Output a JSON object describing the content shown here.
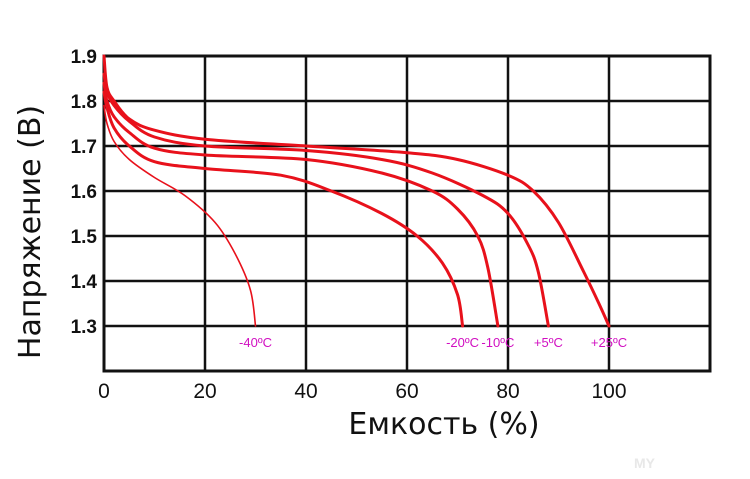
{
  "chart_data": {
    "type": "line",
    "xlabel": "Емкость (%)",
    "ylabel": "Напряжение (В)",
    "xlim": [
      0,
      120
    ],
    "ylim": [
      1.2,
      1.9
    ],
    "x_ticks": [
      0,
      20,
      40,
      60,
      80,
      100
    ],
    "x_tick_labels": [
      "0",
      "20",
      "40",
      "60",
      "80",
      "100"
    ],
    "y_ticks": [
      1.3,
      1.4,
      1.5,
      1.6,
      1.7,
      1.8,
      1.9
    ],
    "y_tick_labels": [
      "1.3",
      "1.4",
      "1.5",
      "1.6",
      "1.7",
      "1.8",
      "1.9"
    ],
    "grid": true,
    "series": [
      {
        "name": "+25ºC",
        "points": [
          [
            0,
            1.9
          ],
          [
            0.6,
            1.83
          ],
          [
            2,
            1.8
          ],
          [
            5,
            1.76
          ],
          [
            10,
            1.735
          ],
          [
            20,
            1.715
          ],
          [
            40,
            1.7
          ],
          [
            60,
            1.685
          ],
          [
            70,
            1.67
          ],
          [
            80,
            1.635
          ],
          [
            85,
            1.6
          ],
          [
            90,
            1.53
          ],
          [
            95,
            1.42
          ],
          [
            98,
            1.35
          ],
          [
            100,
            1.3
          ]
        ]
      },
      {
        "name": "+5ºC",
        "points": [
          [
            0,
            1.86
          ],
          [
            0.6,
            1.82
          ],
          [
            2,
            1.79
          ],
          [
            5,
            1.755
          ],
          [
            10,
            1.72
          ],
          [
            20,
            1.7
          ],
          [
            40,
            1.69
          ],
          [
            55,
            1.67
          ],
          [
            65,
            1.64
          ],
          [
            75,
            1.59
          ],
          [
            80,
            1.55
          ],
          [
            84,
            1.48
          ],
          [
            86,
            1.42
          ],
          [
            88,
            1.3
          ]
        ]
      },
      {
        "name": "-10ºC",
        "points": [
          [
            0,
            1.84
          ],
          [
            0.6,
            1.8
          ],
          [
            2,
            1.765
          ],
          [
            5,
            1.73
          ],
          [
            10,
            1.695
          ],
          [
            20,
            1.68
          ],
          [
            40,
            1.67
          ],
          [
            55,
            1.64
          ],
          [
            65,
            1.6
          ],
          [
            70,
            1.56
          ],
          [
            74,
            1.5
          ],
          [
            76,
            1.43
          ],
          [
            78,
            1.3
          ]
        ]
      },
      {
        "name": "-20ºC",
        "points": [
          [
            0,
            1.82
          ],
          [
            0.6,
            1.785
          ],
          [
            2,
            1.74
          ],
          [
            5,
            1.7
          ],
          [
            10,
            1.665
          ],
          [
            20,
            1.65
          ],
          [
            35,
            1.635
          ],
          [
            45,
            1.6
          ],
          [
            55,
            1.55
          ],
          [
            62,
            1.5
          ],
          [
            67,
            1.44
          ],
          [
            70,
            1.37
          ],
          [
            71,
            1.3
          ]
        ]
      },
      {
        "name": "-40ºC",
        "points": [
          [
            0,
            1.79
          ],
          [
            0.6,
            1.75
          ],
          [
            2,
            1.71
          ],
          [
            5,
            1.67
          ],
          [
            10,
            1.63
          ],
          [
            16,
            1.59
          ],
          [
            22,
            1.53
          ],
          [
            26,
            1.46
          ],
          [
            29,
            1.38
          ],
          [
            30,
            1.3
          ]
        ]
      }
    ],
    "line_color": "#e8111b",
    "label_color": "#d10fc1",
    "watermark": "MY"
  }
}
